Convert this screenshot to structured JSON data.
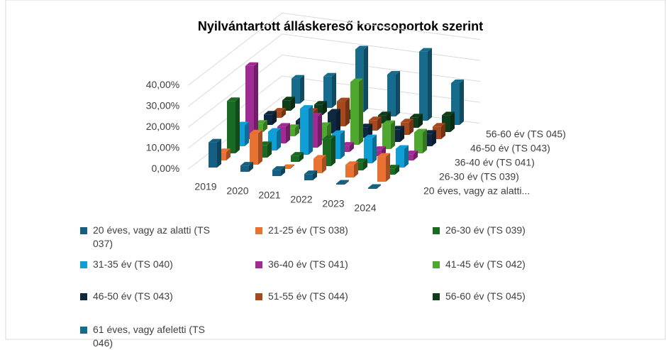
{
  "chart_data": {
    "type": "bar3d",
    "title": "Nyilvántartott álláskereső korcsoportok szerint",
    "categories": [
      "2019",
      "2020",
      "2021",
      "2022",
      "2023",
      "2024"
    ],
    "depth_labels": [
      "20 éves, vagy az alatti...",
      null,
      "26-30 év (TS 039)",
      null,
      "36-40 év (TS 041)",
      null,
      "46-50 év (TS 043)",
      null,
      "56-60 év (TS 045)",
      null
    ],
    "ylim": [
      0,
      40
    ],
    "yticks": [
      {
        "value": 0,
        "label": "0,00%"
      },
      {
        "value": 10,
        "label": "10,00%"
      },
      {
        "value": 20,
        "label": "20,00%"
      },
      {
        "value": 30,
        "label": "30,00%"
      },
      {
        "value": 40,
        "label": "40,00%"
      }
    ],
    "grid": true,
    "series": [
      {
        "name": "20 éves, vagy az alatti (TS 037)",
        "color": "#156082",
        "values": [
          12,
          3,
          3,
          3,
          0.5,
          0.5
        ]
      },
      {
        "name": "21-25 év (TS 038)",
        "color": "#e97132",
        "values": [
          4,
          15,
          0.5,
          7,
          6,
          12
        ]
      },
      {
        "name": "26-30 év (TS 039)",
        "color": "#196b24",
        "values": [
          25,
          6,
          3,
          13,
          4,
          3
        ]
      },
      {
        "name": "31-35 év (TS 040)",
        "color": "#0f9ed5",
        "values": [
          10,
          9,
          22,
          12,
          12,
          9
        ]
      },
      {
        "name": "36-40 év (TS 041)",
        "color": "#a02b93",
        "values": [
          35,
          8,
          15,
          3,
          3,
          3
        ]
      },
      {
        "name": "41-45 év (TS 042)",
        "color": "#4ea72e",
        "values": [
          4,
          4,
          7,
          30,
          12,
          10
        ]
      },
      {
        "name": "46-50 év (TS 043)",
        "color": "#0e2841",
        "values": [
          5,
          4,
          10,
          5,
          6,
          6
        ]
      },
      {
        "name": "51-55 év (TS 044)",
        "color": "#a6491c",
        "values": [
          3,
          5,
          12,
          5,
          6,
          6
        ]
      },
      {
        "name": "56-60 év (TS 045)",
        "color": "#0e3d19",
        "values": [
          5,
          5,
          3,
          4,
          5,
          8
        ]
      },
      {
        "name": "61 éves, vagy afeletti (TS 046)",
        "color": "#176b8c",
        "values": [
          12,
          15,
          30,
          20,
          33,
          20
        ]
      }
    ]
  }
}
